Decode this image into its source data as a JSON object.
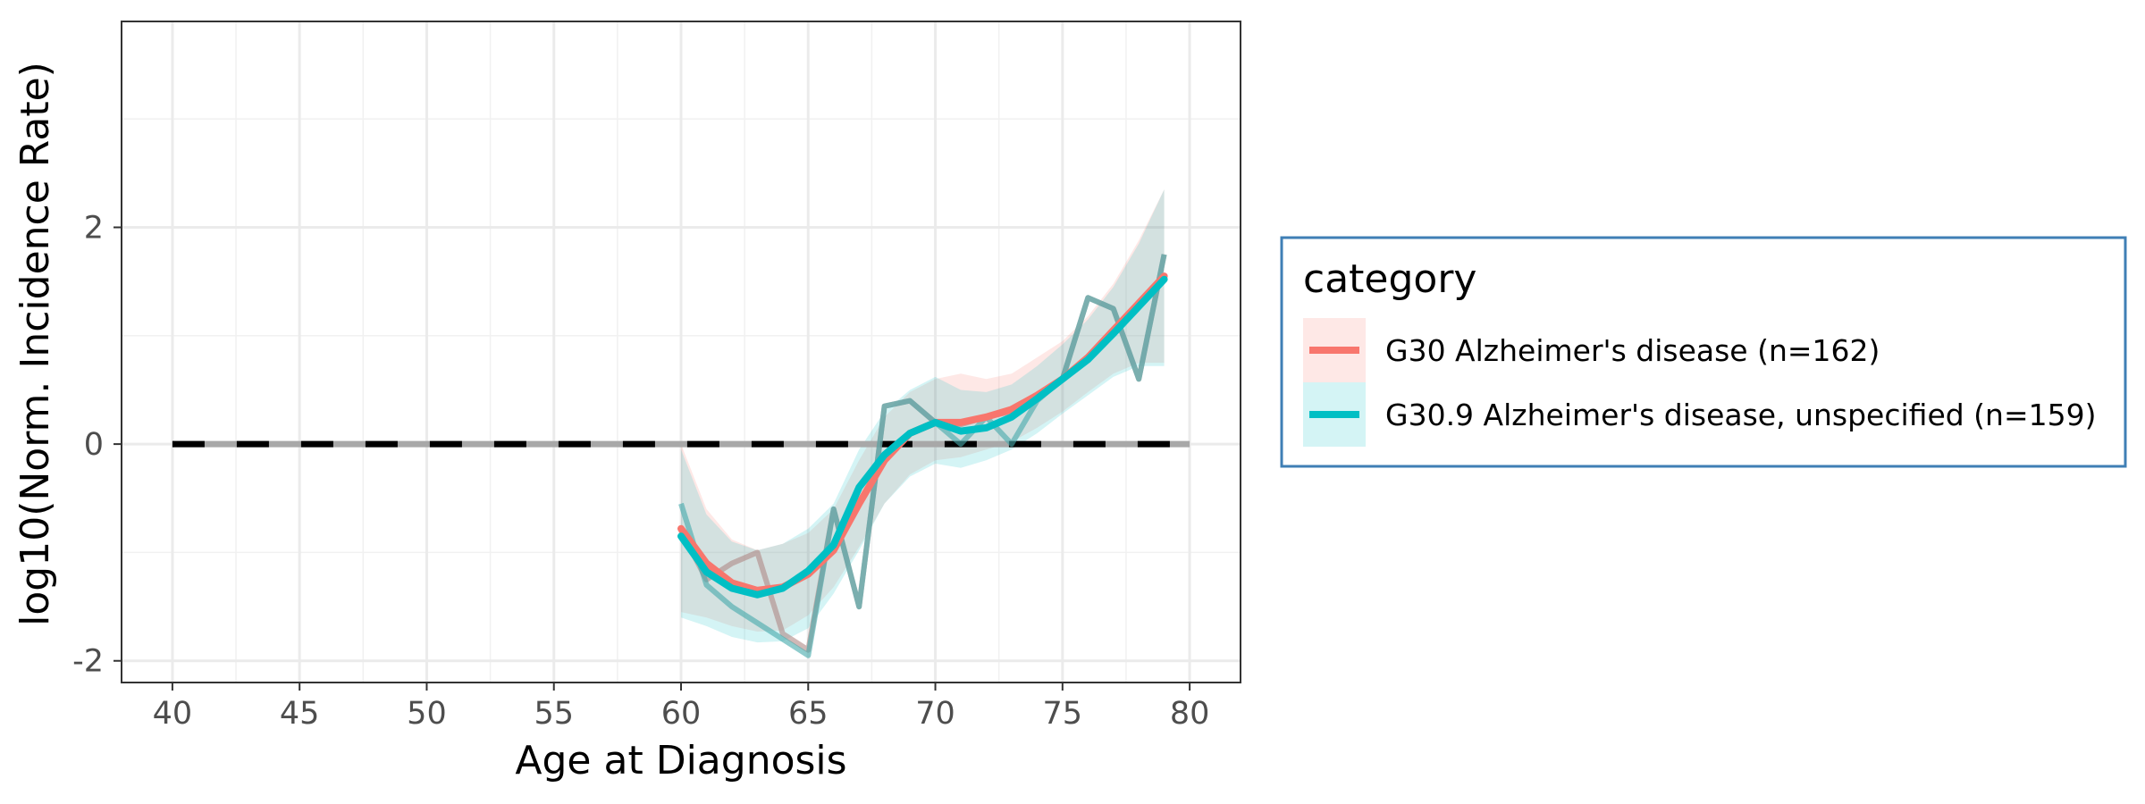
{
  "chart_data": {
    "type": "line",
    "xlabel": "Age at Diagnosis",
    "ylabel": "log10(Norm. Incidence Rate)",
    "xlim": [
      38,
      82
    ],
    "ylim": [
      -2.2,
      3.9
    ],
    "x_ticks": [
      "40",
      "45",
      "50",
      "55",
      "60",
      "65",
      "70",
      "75",
      "80"
    ],
    "x_tick_values": [
      40,
      45,
      50,
      55,
      60,
      65,
      70,
      75,
      80
    ],
    "y_ticks": [
      "-2",
      "0",
      "2"
    ],
    "y_tick_values": [
      -2,
      0,
      2
    ],
    "grid": true,
    "reference_line": {
      "y": 0,
      "x_range": [
        40,
        80
      ],
      "style": "dashed",
      "color": "#000000"
    },
    "legend": {
      "title": "category",
      "position": "right",
      "entries": [
        {
          "label": "G30 Alzheimer's disease (n=162)",
          "color": "#F8766D"
        },
        {
          "label": "G30.9 Alzheimer's disease, unspecified (n=159)",
          "color": "#00BFC4"
        }
      ]
    },
    "series": [
      {
        "name": "G30 Alzheimer's disease (n=162)",
        "color": "#F8766D",
        "raw": {
          "x": [
            60,
            61,
            62,
            63,
            64,
            65,
            66,
            67,
            68,
            69,
            70,
            71,
            72,
            73,
            74,
            75,
            76,
            77,
            78,
            79
          ],
          "y": [
            -0.8,
            -1.25,
            -1.1,
            -1.0,
            -1.75,
            -1.9,
            -0.6,
            -1.5,
            0.35,
            0.4,
            0.2,
            0.18,
            0.25,
            0.3,
            0.45,
            0.6,
            1.35,
            1.25,
            0.6,
            1.75
          ]
        },
        "smooth": {
          "x": [
            60,
            61,
            62,
            63,
            64,
            65,
            66,
            67,
            68,
            69,
            70,
            71,
            72,
            73,
            74,
            75,
            76,
            77,
            78,
            79
          ],
          "y": [
            -0.78,
            -1.1,
            -1.28,
            -1.35,
            -1.32,
            -1.2,
            -0.98,
            -0.55,
            -0.15,
            0.1,
            0.2,
            0.2,
            0.25,
            0.32,
            0.45,
            0.6,
            0.8,
            1.05,
            1.3,
            1.55
          ]
        },
        "band_lower": [
          -1.55,
          -1.6,
          -1.68,
          -1.73,
          -1.72,
          -1.58,
          -1.32,
          -0.95,
          -0.55,
          -0.28,
          -0.15,
          -0.12,
          -0.05,
          0.02,
          0.15,
          0.3,
          0.48,
          0.65,
          0.75,
          0.75
        ],
        "band_upper": [
          0.0,
          -0.6,
          -0.88,
          -0.98,
          -0.92,
          -0.82,
          -0.6,
          -0.15,
          0.25,
          0.48,
          0.6,
          0.65,
          0.6,
          0.65,
          0.8,
          0.95,
          1.18,
          1.48,
          1.88,
          2.35
        ]
      },
      {
        "name": "G30.9 Alzheimer's disease, unspecified (n=159)",
        "color": "#00BFC4",
        "raw": {
          "x": [
            60,
            61,
            62,
            63,
            64,
            65,
            66,
            67,
            68,
            69,
            70,
            71,
            72,
            73,
            74,
            75,
            76,
            77,
            78,
            79
          ],
          "y": [
            -0.55,
            -1.3,
            -1.5,
            -1.65,
            -1.8,
            -1.95,
            -0.6,
            -1.5,
            0.35,
            0.4,
            0.2,
            0.0,
            0.25,
            0.0,
            0.4,
            0.6,
            1.35,
            1.25,
            0.6,
            1.75
          ]
        },
        "smooth": {
          "x": [
            60,
            61,
            62,
            63,
            64,
            65,
            66,
            67,
            68,
            69,
            70,
            71,
            72,
            73,
            74,
            75,
            76,
            77,
            78,
            79
          ],
          "y": [
            -0.85,
            -1.18,
            -1.33,
            -1.39,
            -1.33,
            -1.17,
            -0.93,
            -0.4,
            -0.1,
            0.1,
            0.2,
            0.12,
            0.15,
            0.25,
            0.42,
            0.6,
            0.78,
            1.02,
            1.27,
            1.52
          ]
        },
        "band_lower": [
          -1.6,
          -1.68,
          -1.78,
          -1.83,
          -1.82,
          -1.7,
          -1.38,
          -0.98,
          -0.55,
          -0.3,
          -0.18,
          -0.22,
          -0.15,
          -0.05,
          0.1,
          0.28,
          0.45,
          0.62,
          0.72,
          0.72
        ],
        "band_upper": [
          -0.05,
          -0.65,
          -0.9,
          -0.98,
          -0.92,
          -0.78,
          -0.55,
          -0.05,
          0.3,
          0.5,
          0.62,
          0.5,
          0.48,
          0.55,
          0.72,
          0.92,
          1.15,
          1.45,
          1.85,
          2.35
        ]
      }
    ]
  }
}
